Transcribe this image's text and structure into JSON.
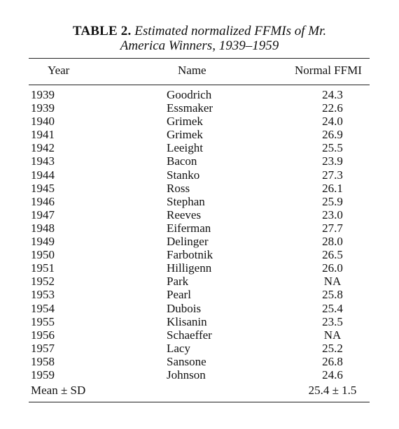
{
  "caption": {
    "label": "TABLE 2.",
    "title_line1": "Estimated normalized FFMIs of Mr.",
    "title_line2": "America Winners, 1939–1959"
  },
  "table": {
    "headers": [
      "Year",
      "Name",
      "Normal FFMI"
    ],
    "rows": [
      [
        "1939",
        "Goodrich",
        "24.3"
      ],
      [
        "1939",
        "Essmaker",
        "22.6"
      ],
      [
        "1940",
        "Grimek",
        "24.0"
      ],
      [
        "1941",
        "Grimek",
        "26.9"
      ],
      [
        "1942",
        "Leeight",
        "25.5"
      ],
      [
        "1943",
        "Bacon",
        "23.9"
      ],
      [
        "1944",
        "Stanko",
        "27.3"
      ],
      [
        "1945",
        "Ross",
        "26.1"
      ],
      [
        "1946",
        "Stephan",
        "25.9"
      ],
      [
        "1947",
        "Reeves",
        "23.0"
      ],
      [
        "1948",
        "Eiferman",
        "27.7"
      ],
      [
        "1949",
        "Delinger",
        "28.0"
      ],
      [
        "1950",
        "Farbotnik",
        "26.5"
      ],
      [
        "1951",
        "Hilligenn",
        "26.0"
      ],
      [
        "1952",
        "Park",
        "NA"
      ],
      [
        "1953",
        "Pearl",
        "25.8"
      ],
      [
        "1954",
        "Dubois",
        "25.4"
      ],
      [
        "1955",
        "Klisanin",
        "23.5"
      ],
      [
        "1956",
        "Schaeffer",
        "NA"
      ],
      [
        "1957",
        "Lacy",
        "25.2"
      ],
      [
        "1958",
        "Sansone",
        "26.8"
      ],
      [
        "1959",
        "Johnson",
        "24.6"
      ]
    ],
    "summary": {
      "label": "Mean ± SD",
      "value": "25.4 ± 1.5"
    }
  }
}
